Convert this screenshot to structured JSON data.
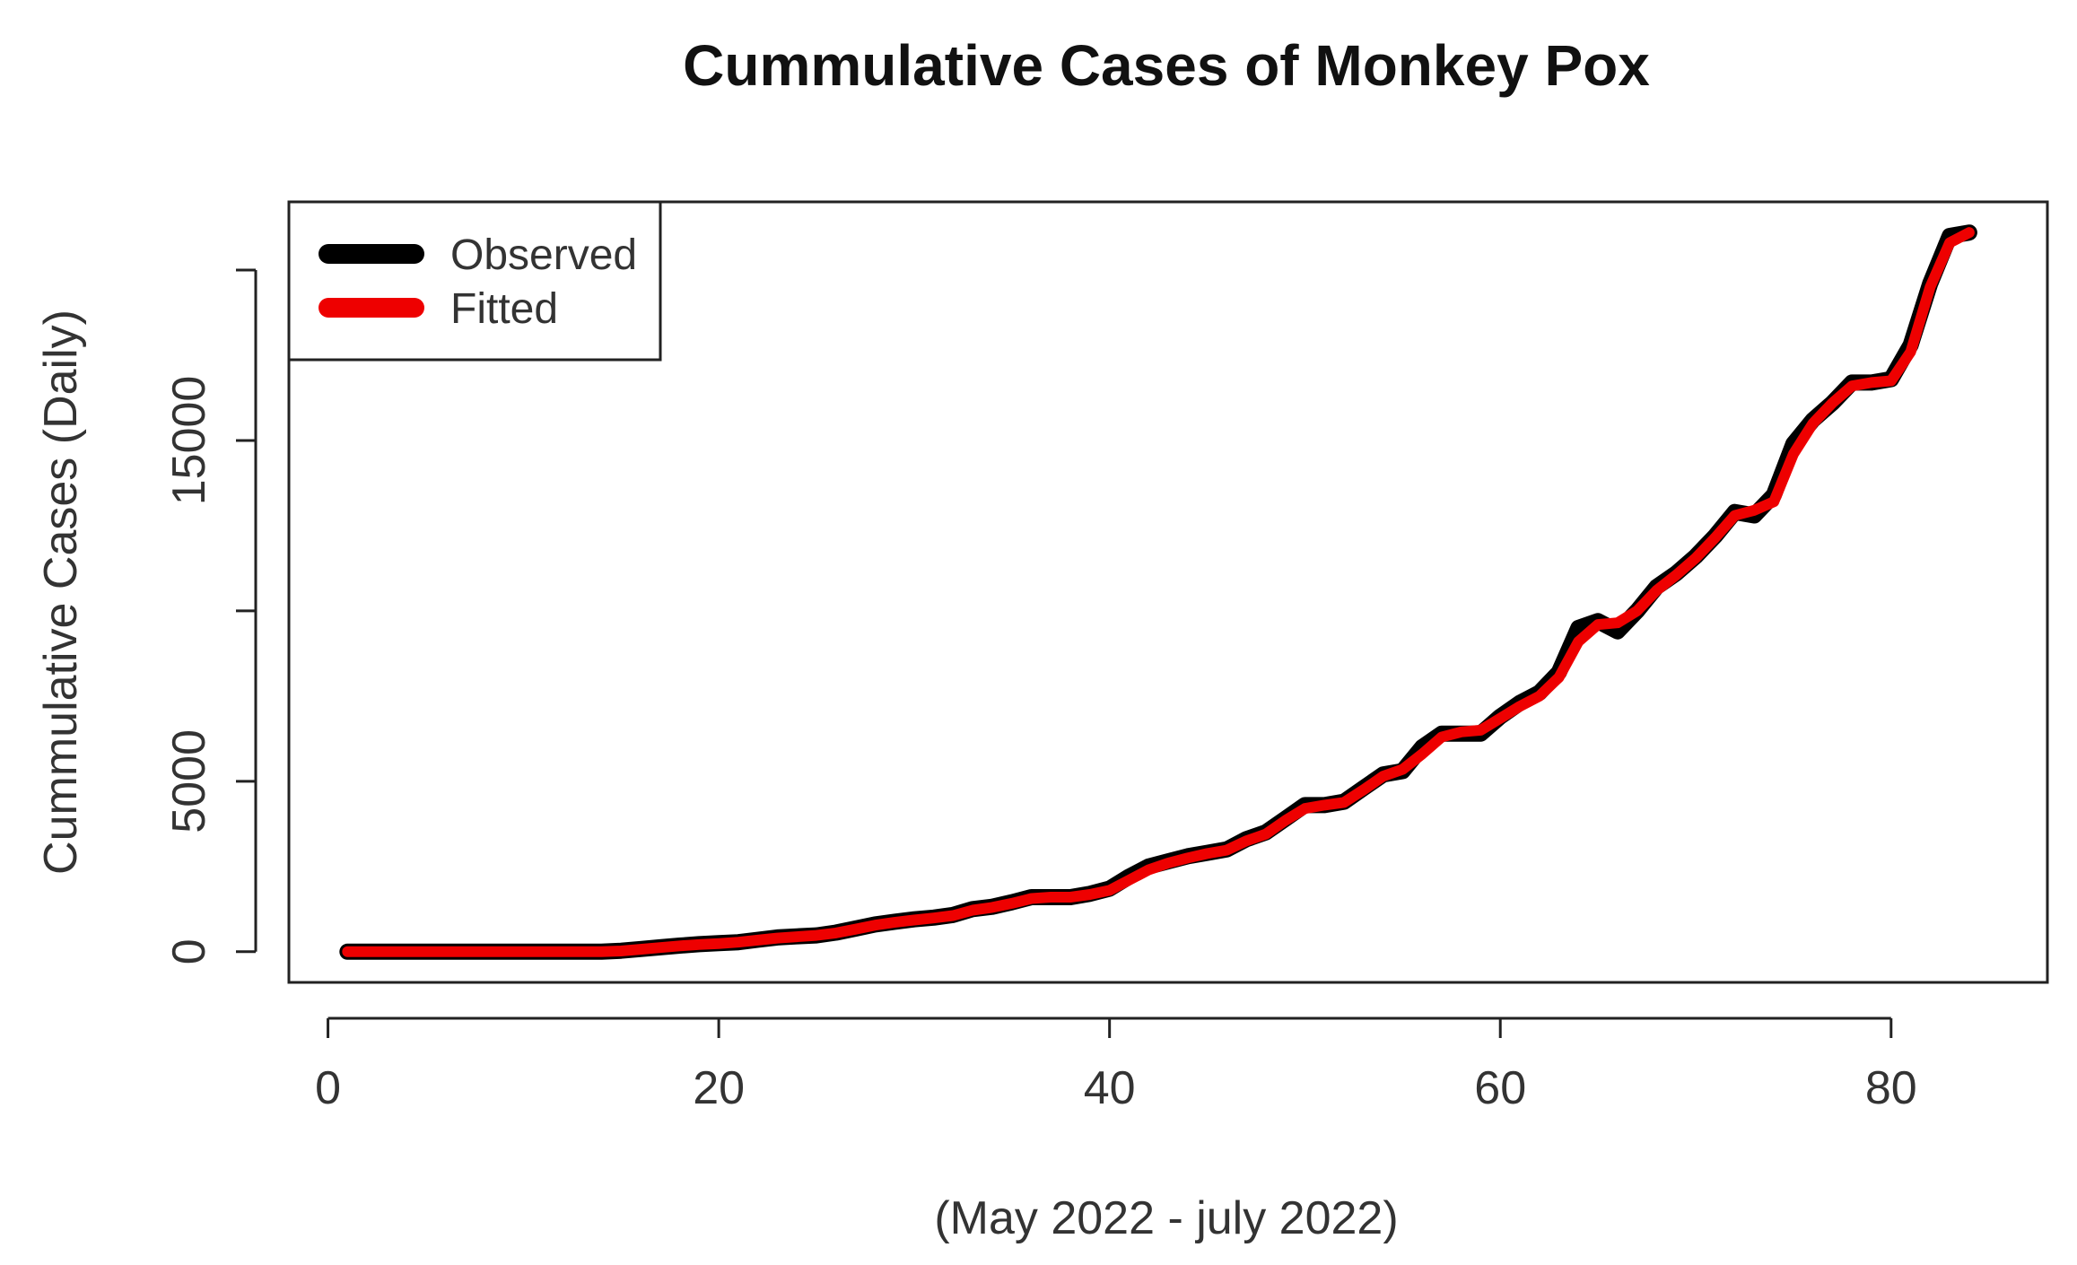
{
  "chart_data": {
    "type": "line",
    "title": "Cummulative Cases of Monkey Pox",
    "xlabel": "(May 2022 - july 2022)",
    "ylabel": "Cummulative Cases (Daily)",
    "xlim": [
      -2,
      88
    ],
    "ylim": [
      -900,
      22000
    ],
    "xticks": [
      0,
      20,
      40,
      60,
      80
    ],
    "yticks": [
      0,
      5000,
      10000,
      15000,
      20000
    ],
    "ytick_labels": [
      "0",
      "5000",
      "",
      "15000",
      ""
    ],
    "grid": false,
    "legend": "top-left",
    "series": [
      {
        "name": "Observed",
        "color": "#000000",
        "x": [
          1,
          2,
          3,
          4,
          5,
          6,
          7,
          8,
          9,
          10,
          11,
          12,
          13,
          14,
          15,
          16,
          17,
          18,
          19,
          20,
          21,
          22,
          23,
          24,
          25,
          26,
          27,
          28,
          29,
          30,
          31,
          32,
          33,
          34,
          35,
          36,
          37,
          38,
          39,
          40,
          41,
          42,
          43,
          44,
          45,
          46,
          47,
          48,
          49,
          50,
          51,
          52,
          53,
          54,
          55,
          56,
          57,
          58,
          59,
          60,
          61,
          62,
          63,
          64,
          65,
          66,
          67,
          68,
          69,
          70,
          71,
          72,
          73,
          74,
          75,
          76,
          77,
          78,
          79,
          80,
          81,
          82,
          83,
          84
        ],
        "y": [
          0,
          0,
          0,
          0,
          0,
          0,
          0,
          0,
          0,
          0,
          0,
          0,
          0,
          0,
          30,
          80,
          130,
          180,
          220,
          250,
          280,
          350,
          420,
          450,
          480,
          560,
          680,
          800,
          880,
          950,
          1000,
          1080,
          1250,
          1320,
          1450,
          1600,
          1600,
          1600,
          1700,
          1850,
          2200,
          2500,
          2650,
          2800,
          2900,
          3000,
          3300,
          3500,
          3900,
          4300,
          4300,
          4400,
          4800,
          5200,
          5300,
          6000,
          6400,
          6400,
          6400,
          6900,
          7300,
          7600,
          8200,
          9500,
          9700,
          9400,
          10000,
          10700,
          11100,
          11600,
          12200,
          12900,
          12800,
          13400,
          14900,
          15600,
          16100,
          16700,
          16700,
          16800,
          17800,
          19600,
          21000,
          21100
        ]
      },
      {
        "name": "Fitted",
        "color": "#ee0000",
        "x": [
          1,
          2,
          3,
          4,
          5,
          6,
          7,
          8,
          9,
          10,
          11,
          12,
          13,
          14,
          15,
          16,
          17,
          18,
          19,
          20,
          21,
          22,
          23,
          24,
          25,
          26,
          27,
          28,
          29,
          30,
          31,
          32,
          33,
          34,
          35,
          36,
          37,
          38,
          39,
          40,
          41,
          42,
          43,
          44,
          45,
          46,
          47,
          48,
          49,
          50,
          51,
          52,
          53,
          54,
          55,
          56,
          57,
          58,
          59,
          60,
          61,
          62,
          63,
          64,
          65,
          66,
          67,
          68,
          69,
          70,
          71,
          72,
          73,
          74,
          75,
          76,
          77,
          78,
          79,
          80,
          81,
          82,
          83,
          84
        ],
        "y": [
          0,
          0,
          0,
          0,
          0,
          0,
          0,
          0,
          0,
          0,
          0,
          0,
          0,
          0,
          20,
          70,
          120,
          170,
          210,
          240,
          280,
          340,
          400,
          440,
          480,
          550,
          660,
          780,
          860,
          930,
          990,
          1060,
          1220,
          1300,
          1420,
          1560,
          1600,
          1600,
          1680,
          1800,
          2100,
          2400,
          2600,
          2750,
          2880,
          2980,
          3250,
          3450,
          3850,
          4200,
          4300,
          4380,
          4750,
          5150,
          5350,
          5800,
          6300,
          6450,
          6500,
          6850,
          7200,
          7500,
          8050,
          9100,
          9600,
          9650,
          10000,
          10600,
          11050,
          11550,
          12150,
          12800,
          12950,
          13200,
          14600,
          15500,
          16100,
          16600,
          16700,
          16750,
          17600,
          19500,
          20800,
          21100
        ]
      }
    ]
  }
}
